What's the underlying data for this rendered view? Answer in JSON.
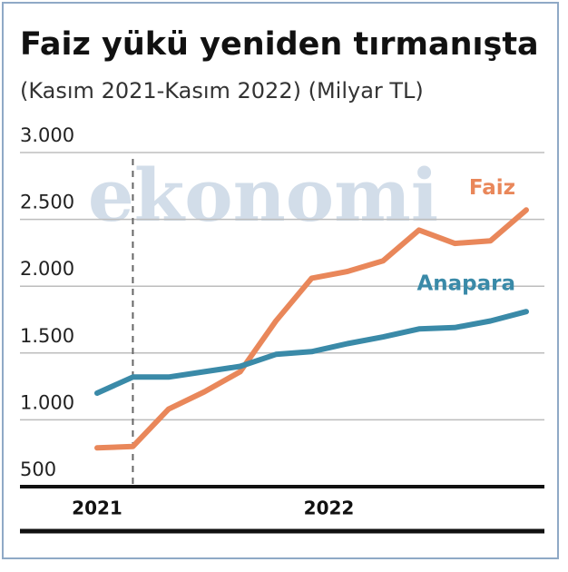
{
  "chart_data": {
    "type": "line",
    "title": "Faiz yükü yeniden tırmanışta",
    "subtitle": "(Kasım 2021-Kasım 2022) (Milyar TL)",
    "watermark": "ekonomi",
    "categories": [
      "2021",
      null,
      null,
      null,
      null,
      null,
      "2022",
      null,
      null,
      null,
      null,
      null,
      null
    ],
    "series": [
      {
        "name": "Faiz",
        "color": "#e9875a",
        "values": [
          790,
          800,
          1080,
          1210,
          1360,
          1740,
          2060,
          2110,
          2190,
          2420,
          2320,
          2340,
          2570
        ]
      },
      {
        "name": "Anapara",
        "color": "#3a8aa8",
        "values": [
          1200,
          1320,
          1320,
          1360,
          1400,
          1490,
          1510,
          1570,
          1620,
          1680,
          1690,
          1740,
          1810
        ]
      }
    ],
    "ylim": [
      500,
      3000
    ],
    "yticks": [
      {
        "value": 500,
        "label": "500"
      },
      {
        "value": 1000,
        "label": "1.000"
      },
      {
        "value": 1500,
        "label": "1.500"
      },
      {
        "value": 2000,
        "label": "2.000"
      },
      {
        "value": 2500,
        "label": "2.500"
      },
      {
        "value": 3000,
        "label": "3.000"
      }
    ],
    "grid": true
  }
}
